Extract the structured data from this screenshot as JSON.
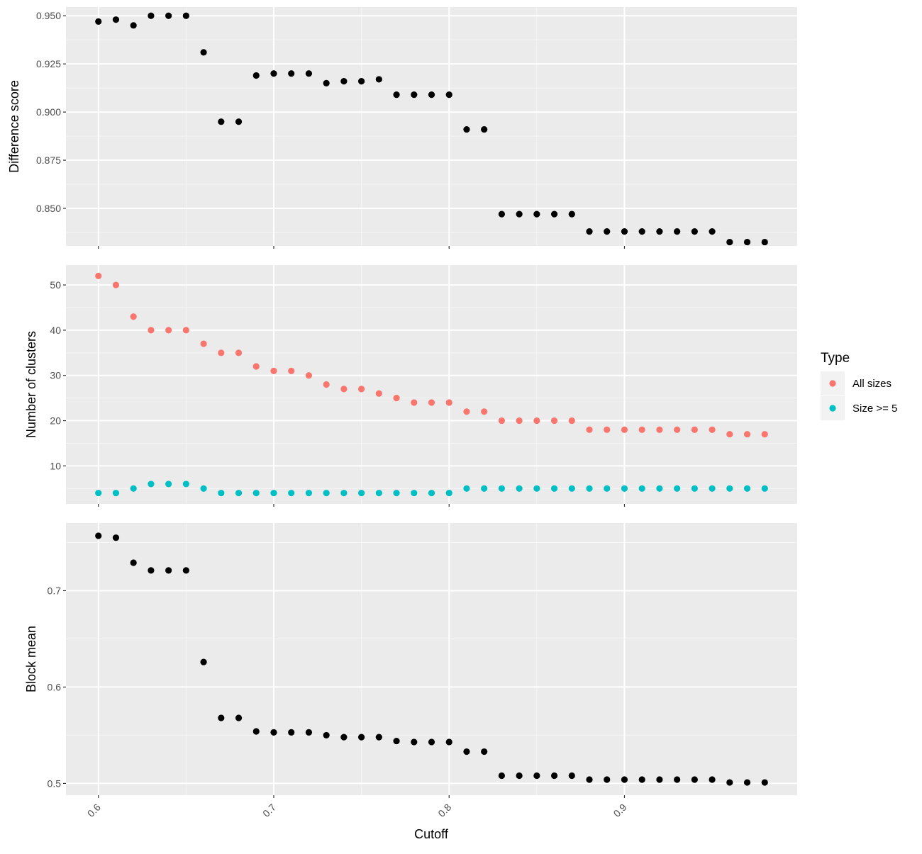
{
  "chart_data": {
    "type": "scatter",
    "x_label": "Cutoff",
    "x_ticks": [
      0.6,
      0.7,
      0.8,
      0.9
    ],
    "x_tick_labels": [
      "0.6",
      "0.7",
      "0.8",
      "0.9"
    ],
    "x": [
      0.6,
      0.61,
      0.62,
      0.63,
      0.64,
      0.65,
      0.66,
      0.67,
      0.68,
      0.69,
      0.7,
      0.71,
      0.72,
      0.73,
      0.74,
      0.75,
      0.76,
      0.77,
      0.78,
      0.79,
      0.8,
      0.81,
      0.82,
      0.83,
      0.84,
      0.85,
      0.86,
      0.87,
      0.88,
      0.89,
      0.9,
      0.91,
      0.92,
      0.93,
      0.94,
      0.95,
      0.96,
      0.97,
      0.98
    ],
    "panels": [
      {
        "ylabel": "Difference score",
        "y_ticks": [
          0.85,
          0.875,
          0.9,
          0.925,
          0.95
        ],
        "y_tick_labels": [
          "0.850",
          "0.875",
          "0.900",
          "0.925",
          "0.950"
        ],
        "ylim": [
          0.8305,
          0.9545
        ],
        "series": [
          {
            "color": "#000000",
            "values": [
              0.947,
              0.948,
              0.945,
              0.95,
              0.95,
              0.95,
              0.931,
              0.895,
              0.895,
              0.919,
              0.92,
              0.92,
              0.92,
              0.915,
              0.916,
              0.916,
              0.917,
              0.909,
              0.909,
              0.909,
              0.909,
              0.891,
              0.891,
              0.847,
              0.847,
              0.847,
              0.847,
              0.847,
              0.838,
              0.838,
              0.838,
              0.838,
              0.838,
              0.838,
              0.838,
              0.838,
              0.8325,
              0.8325,
              0.8325
            ]
          }
        ]
      },
      {
        "ylabel": "Number of clusters",
        "y_ticks": [
          10,
          20,
          30,
          40,
          50
        ],
        "y_tick_labels": [
          "10",
          "20",
          "30",
          "40",
          "50"
        ],
        "ylim": [
          1.6,
          54.4
        ],
        "series": [
          {
            "name": "All sizes",
            "color": "#F8766D",
            "values": [
              52,
              50,
              43,
              40,
              40,
              40,
              37,
              35,
              35,
              32,
              31,
              31,
              30,
              28,
              27,
              27,
              26,
              25,
              24,
              24,
              24,
              22,
              22,
              20,
              20,
              20,
              20,
              20,
              18,
              18,
              18,
              18,
              18,
              18,
              18,
              18,
              17,
              17,
              17
            ]
          },
          {
            "name": "Size >= 5",
            "color": "#00BFC4",
            "values": [
              4,
              4,
              5,
              6,
              6,
              6,
              5,
              4,
              4,
              4,
              4,
              4,
              4,
              4,
              4,
              4,
              4,
              4,
              4,
              4,
              4,
              5,
              5,
              5,
              5,
              5,
              5,
              5,
              5,
              5,
              5,
              5,
              5,
              5,
              5,
              5,
              5,
              5,
              5
            ]
          }
        ]
      },
      {
        "ylabel": "Block mean",
        "y_ticks": [
          0.5,
          0.6,
          0.7
        ],
        "y_tick_labels": [
          "0.5",
          "0.6",
          "0.7"
        ],
        "ylim": [
          0.4878,
          0.7702
        ],
        "series": [
          {
            "color": "#000000",
            "values": [
              0.757,
              0.755,
              0.729,
              0.721,
              0.721,
              0.721,
              0.626,
              0.568,
              0.568,
              0.554,
              0.553,
              0.553,
              0.553,
              0.55,
              0.548,
              0.548,
              0.548,
              0.544,
              0.543,
              0.543,
              0.543,
              0.533,
              0.533,
              0.508,
              0.508,
              0.508,
              0.508,
              0.508,
              0.504,
              0.504,
              0.504,
              0.504,
              0.504,
              0.504,
              0.504,
              0.504,
              0.501,
              0.501,
              0.501
            ]
          }
        ]
      }
    ],
    "legend": {
      "title": "Type",
      "position": "right",
      "items": [
        {
          "label": "All sizes",
          "color": "#F8766D"
        },
        {
          "label": "Size >= 5",
          "color": "#00BFC4"
        }
      ]
    },
    "grid": true
  }
}
